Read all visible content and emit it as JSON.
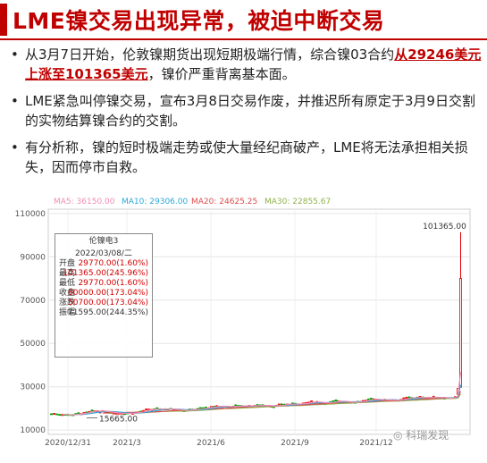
{
  "slide": {
    "title": "LME镍交易出现异常，被迫中断交易",
    "bullets": [
      {
        "pre": "从3月7日开始，伦敦镍期货出现短期极端行情，综合镍03合约",
        "highlight": "从29246美元上涨至101365美元",
        "post": "，镍价严重背离基本面。"
      },
      {
        "text": "LME紧急叫停镍交易，宣布3月8日交易作废，并推迟所有原定于3月9日交割的实物结算镍合约的交割。"
      },
      {
        "text": "有分析称，镍的短时极端走势或使大量经纪商破产，LME将无法承担相关损失，因而停市自救。"
      }
    ],
    "watermark": "科瑞发现"
  },
  "colors": {
    "accent": "#c00000",
    "up": "#e60000",
    "down": "#00a000",
    "ma5": "#f08cb4",
    "ma10": "#2aa8d8",
    "ma20": "#e04a4a",
    "ma30": "#8fb24a"
  },
  "ma_legend": [
    {
      "text": "MA5: 36150.00",
      "color": "#f08cb4"
    },
    {
      "text": "MA10: 29306.00",
      "color": "#2aa8d8"
    },
    {
      "text": "MA20: 24625.25",
      "color": "#e04a4a"
    },
    {
      "text": "MA30: 22855.67",
      "color": "#8fb24a"
    }
  ],
  "infobox": {
    "title": "伦镍电3",
    "date": "2022/03/08/二",
    "rows": [
      {
        "label": "开盘",
        "value": "29770.00(1.60%)"
      },
      {
        "label": "最高",
        "value": "101365.00(245.96%)"
      },
      {
        "label": "最低",
        "value": "29770.00(1.60%)"
      },
      {
        "label": "收盘",
        "value": "80000.00(173.04%)"
      },
      {
        "label": "涨跌",
        "value": "50700.00(173.04%)"
      },
      {
        "label": "振幅",
        "value": "71595.00(244.35%)"
      }
    ]
  },
  "chart_data": {
    "type": "candlestick",
    "title": "",
    "y_ticks": [
      10000,
      30000,
      50000,
      70000,
      90000,
      110000
    ],
    "ylim": [
      8000,
      112000
    ],
    "x_ticks": [
      "2020/12/31",
      "2021/3",
      "2021/6",
      "2021/9",
      "2021/12"
    ],
    "annotations": [
      {
        "text": "101365.00",
        "value": 101365
      },
      {
        "text": "15665.00",
        "value": 15665
      }
    ],
    "ohlc_tail": [
      {
        "date": "2022/03/04",
        "open": 26500,
        "high": 29300,
        "low": 26000,
        "close": 29246
      },
      {
        "date": "2022/03/08",
        "open": 29770,
        "high": 101365,
        "low": 29770,
        "close": 80000
      }
    ]
  }
}
